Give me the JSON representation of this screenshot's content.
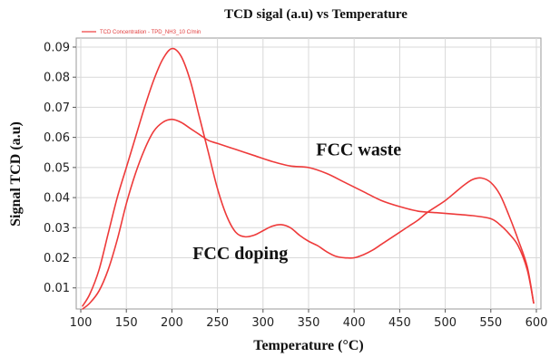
{
  "chart_data": {
    "type": "line",
    "title": "TCD sigal (a.u) vs Temperature",
    "xlabel": "Temperature (°C)",
    "ylabel": "Signal TCD (a.u)",
    "xlim": [
      95,
      605
    ],
    "ylim": [
      0.003,
      0.093
    ],
    "xticks": [
      100,
      150,
      200,
      250,
      300,
      350,
      400,
      450,
      500,
      550,
      600
    ],
    "yticks": [
      0.01,
      0.02,
      0.03,
      0.04,
      0.05,
      0.06,
      0.07,
      0.08,
      0.09
    ],
    "grid": true,
    "legend": {
      "position": "top-left",
      "entries": [
        "TCD Concentration - TPD_NH3_10 C/min"
      ]
    },
    "annotations": [
      {
        "text": "FCC waste",
        "x": 405,
        "y": 0.054
      },
      {
        "text": "FCC doping",
        "x": 275,
        "y": 0.0195
      }
    ],
    "series": [
      {
        "color": "#ee3a3a",
        "x": [
          102,
          110,
          120,
          130,
          140,
          150,
          160,
          170,
          180,
          190,
          200,
          210,
          220,
          230,
          240,
          250,
          260,
          270,
          280,
          290,
          300,
          310,
          320,
          330,
          340,
          350,
          360,
          370,
          380,
          390,
          400,
          410,
          420,
          430,
          440,
          450,
          460,
          470,
          480,
          490,
          500,
          510,
          520,
          530,
          540,
          550,
          560,
          570,
          580,
          590,
          597
        ],
        "y": [
          0.004,
          0.008,
          0.016,
          0.028,
          0.04,
          0.05,
          0.06,
          0.07,
          0.079,
          0.086,
          0.0895,
          0.087,
          0.079,
          0.067,
          0.055,
          0.043,
          0.034,
          0.0285,
          0.027,
          0.0275,
          0.029,
          0.0305,
          0.031,
          0.03,
          0.0275,
          0.0255,
          0.024,
          0.022,
          0.0205,
          0.02,
          0.02,
          0.021,
          0.0225,
          0.0245,
          0.0265,
          0.0285,
          0.0305,
          0.0325,
          0.035,
          0.037,
          0.039,
          0.0415,
          0.044,
          0.046,
          0.0465,
          0.045,
          0.041,
          0.034,
          0.026,
          0.017,
          0.005
        ]
      },
      {
        "color": "#ee3a3a",
        "x": [
          102,
          110,
          120,
          130,
          140,
          150,
          160,
          170,
          180,
          190,
          200,
          210,
          220,
          230,
          240,
          250,
          270,
          290,
          310,
          330,
          350,
          370,
          390,
          410,
          430,
          450,
          470,
          490,
          510,
          530,
          550,
          560,
          570,
          580,
          590,
          597
        ],
        "y": [
          0.003,
          0.005,
          0.009,
          0.016,
          0.026,
          0.038,
          0.048,
          0.056,
          0.062,
          0.065,
          0.066,
          0.065,
          0.063,
          0.061,
          0.059,
          0.058,
          0.056,
          0.054,
          0.052,
          0.0505,
          0.05,
          0.048,
          0.045,
          0.042,
          0.039,
          0.037,
          0.0355,
          0.035,
          0.0345,
          0.034,
          0.033,
          0.031,
          0.028,
          0.024,
          0.016,
          0.005
        ]
      }
    ]
  }
}
